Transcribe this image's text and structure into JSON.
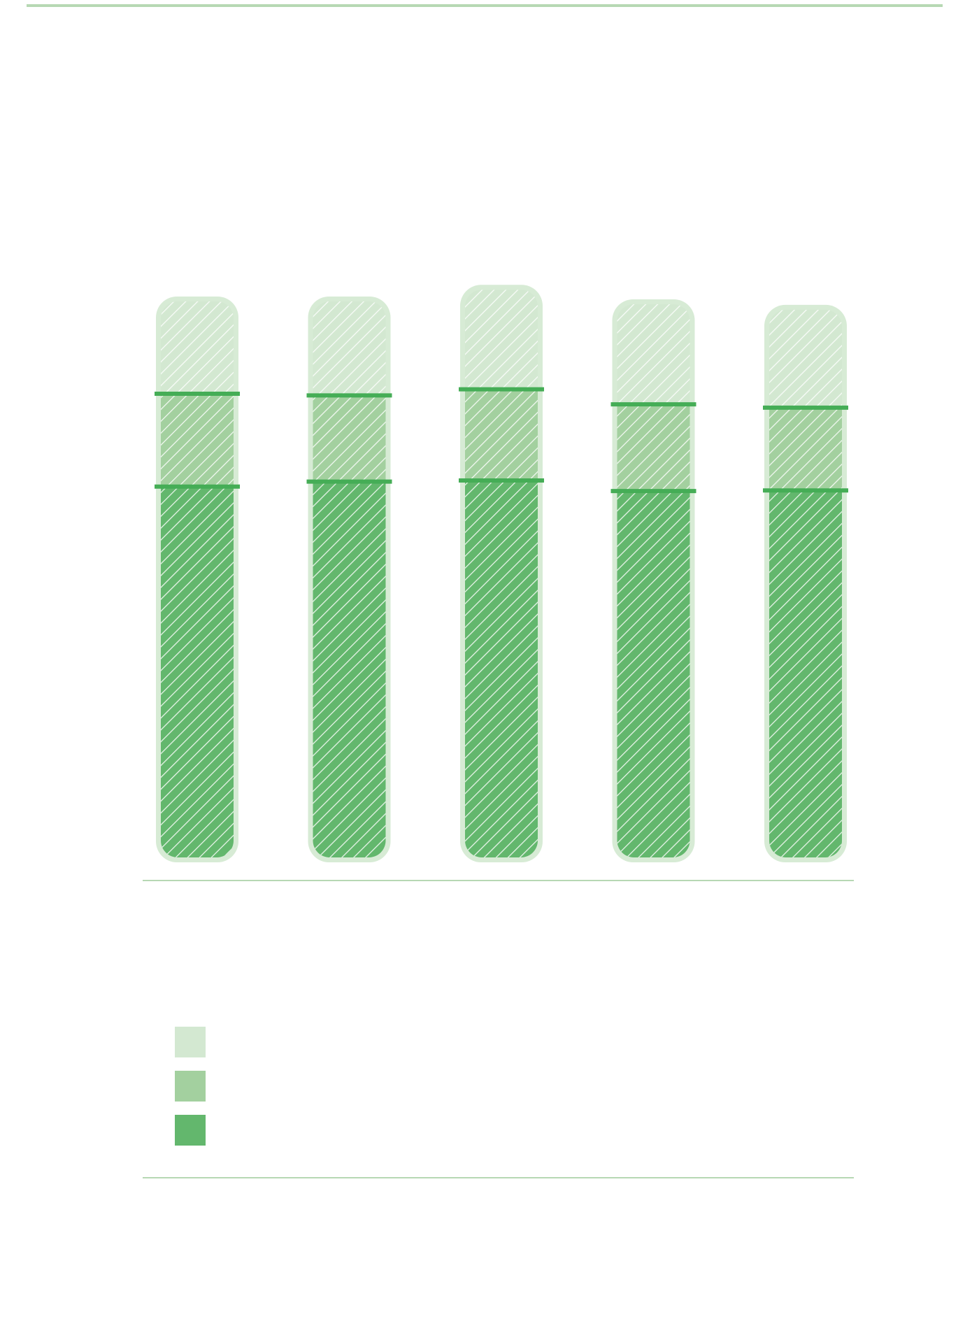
{
  "chart_data": {
    "type": "bar",
    "stacked": true,
    "title": "",
    "xlabel": "",
    "ylabel": "",
    "categories": [
      "",
      "",
      "",
      "",
      ""
    ],
    "ylim": [
      0,
      100
    ],
    "series": [
      {
        "color": "#63b76d",
        "values": [
          66.7,
          67.6,
          67.8,
          65.9,
          66.0
        ]
      },
      {
        "color": "#a3d09f",
        "values": [
          16.7,
          15.5,
          16.4,
          15.6,
          14.9
        ]
      },
      {
        "color": "#d3e8d1",
        "values": [
          16.6,
          16.9,
          17.9,
          18.0,
          17.6
        ]
      }
    ],
    "separator_color": "#45ad56",
    "legend": {
      "placement": "bottom-left",
      "labels": [
        "",
        "",
        ""
      ],
      "colors": [
        "#d3e8d1",
        "#a3d09f",
        "#63b76d"
      ]
    },
    "grid": false
  }
}
